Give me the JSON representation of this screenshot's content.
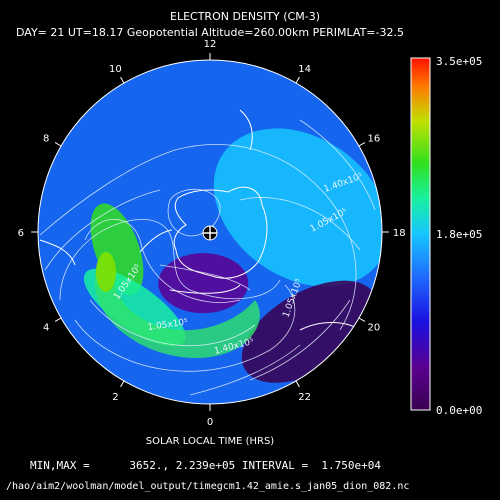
{
  "chart_data": {
    "type": "heatmap",
    "title": "ELECTRON DENSITY (CM-3)",
    "subtitle": "DAY= 21 UT=18.17 Geopotential Altitude=260.00km PERIMLAT=-32.5",
    "xlabel": "SOLAR LOCAL TIME (HRS)",
    "projection": "south-polar",
    "perimeter_latitude": -32.5,
    "local_time_labels": [
      "12",
      "14",
      "16",
      "18",
      "20",
      "22",
      "0",
      "2",
      "4",
      "6",
      "8",
      "10"
    ],
    "colorbar": {
      "min": 0.0,
      "max": 350000,
      "tick_labels": [
        "3.5e+05",
        "1.8e+05",
        "0.0e+00"
      ],
      "colormap": [
        "#3a0050",
        "#5a0090",
        "#1a10e0",
        "#1f6cff",
        "#17c6ff",
        "#18f0a0",
        "#30e020",
        "#c0e000",
        "#ff7a00",
        "#ff1000"
      ]
    },
    "contour_labels": [
      {
        "text": "1.40x10⁵",
        "value": 140000
      },
      {
        "text": "1.05x10⁵",
        "value": 105000
      },
      {
        "text": "1.05x10⁵",
        "value": 105000
      },
      {
        "text": "1.05x10⁵",
        "value": 105000
      },
      {
        "text": "1.05x10⁵",
        "value": 105000
      },
      {
        "text": "1.40x10⁵",
        "value": 140000
      }
    ],
    "min": 3652.0,
    "max": 223900,
    "interval": 17500,
    "features": [
      {
        "name": "dayside-high",
        "lt": 17.0,
        "colat_frac": 0.55,
        "value": 150000
      },
      {
        "name": "tongue-of-ionization-peak",
        "lt": 5.3,
        "colat_frac": 0.55,
        "value": 215000
      },
      {
        "name": "tongue-arc",
        "lt": 3.0,
        "colat_frac": 0.62,
        "value": 190000
      },
      {
        "name": "trough",
        "lt": 21.0,
        "colat_frac": 0.82,
        "value": 10000
      },
      {
        "name": "polar-cap-low",
        "lt": 0.5,
        "colat_frac": 0.3,
        "value": 35000
      }
    ]
  },
  "footer": {
    "minmax": "MIN,MAX =      3652., 2.239e+05 INTERVAL =  1.750e+04",
    "path": "/hao/aim2/woolman/model_output/timegcm1.42_amie.s_jan05_dion_082.nc"
  }
}
